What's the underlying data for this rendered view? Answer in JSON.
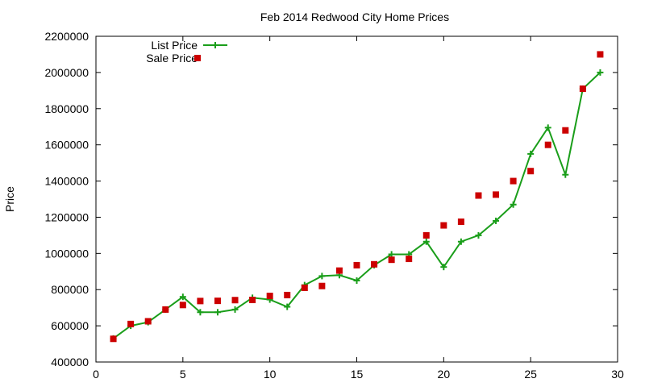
{
  "chart_data": {
    "type": "line",
    "title": "Feb 2014 Redwood City Home Prices",
    "xlabel": "",
    "ylabel": "Price",
    "xlim": [
      0,
      30
    ],
    "ylim": [
      400000,
      2200000
    ],
    "xticks": [
      0,
      5,
      10,
      15,
      20,
      25,
      30
    ],
    "yticks": [
      400000,
      600000,
      800000,
      1000000,
      1200000,
      1400000,
      1600000,
      1800000,
      2000000,
      2200000
    ],
    "grid": false,
    "legend_position": "top-left",
    "series": [
      {
        "name": "List Price",
        "style": "line+cross",
        "color": "#1a9e1a",
        "x": [
          1,
          2,
          3,
          4,
          5,
          6,
          7,
          8,
          9,
          10,
          11,
          12,
          13,
          14,
          15,
          16,
          17,
          18,
          19,
          20,
          21,
          22,
          23,
          24,
          25,
          26,
          27,
          28,
          29
        ],
        "values": [
          530000,
          600000,
          620000,
          690000,
          760000,
          675000,
          675000,
          690000,
          755000,
          745000,
          705000,
          825000,
          875000,
          880000,
          850000,
          935000,
          995000,
          995000,
          1065000,
          925000,
          1065000,
          1100000,
          1180000,
          1270000,
          1550000,
          1695000,
          1435000,
          1910000,
          2000000
        ]
      },
      {
        "name": "Sale Price",
        "style": "square-points",
        "color": "#cc0000",
        "x": [
          1,
          2,
          3,
          4,
          5,
          6,
          7,
          8,
          9,
          10,
          11,
          12,
          13,
          14,
          15,
          16,
          17,
          18,
          19,
          20,
          21,
          22,
          23,
          24,
          25,
          26,
          27,
          28,
          29
        ],
        "values": [
          528000,
          610000,
          625000,
          690000,
          715000,
          737000,
          738000,
          742000,
          743000,
          765000,
          770000,
          810000,
          820000,
          905000,
          935000,
          940000,
          965000,
          970000,
          1100000,
          1155000,
          1175000,
          1320000,
          1325000,
          1400000,
          1455000,
          1600000,
          1680000,
          1910000,
          2100000
        ]
      }
    ]
  }
}
